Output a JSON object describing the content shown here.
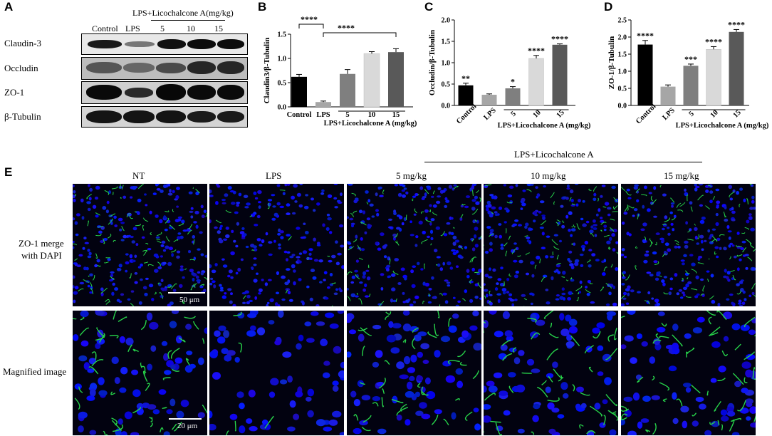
{
  "panels": {
    "A": "A",
    "B": "B",
    "C": "C",
    "D": "D",
    "E": "E"
  },
  "blot": {
    "group_header": "LPS+Licochalcone A(mg/kg)",
    "lanes": [
      "Control",
      "LPS",
      "5",
      "10",
      "15"
    ],
    "rows": [
      "Claudin-3",
      "Occludin",
      "ZO-1",
      "β-Tubulin"
    ]
  },
  "chart_data": [
    {
      "panel": "B",
      "type": "bar",
      "ylabel": "Claudin3/β-Tubulin",
      "xlabel": "LPS+Licochalcone A (mg/kg)",
      "categories": [
        "Control",
        "LPS",
        "5",
        "10",
        "15"
      ],
      "values": [
        0.62,
        0.1,
        0.68,
        1.1,
        1.13
      ],
      "errors": [
        0.05,
        0.02,
        0.09,
        0.04,
        0.07
      ],
      "annotations": [
        "",
        "",
        "",
        "",
        ""
      ],
      "brackets": [
        {
          "from": 0,
          "to": 1,
          "label": "****"
        },
        {
          "from": 1,
          "to": 4,
          "label": "****"
        }
      ],
      "colors": [
        "#000000",
        "#a6a6a6",
        "#7f7f7f",
        "#d9d9d9",
        "#595959"
      ],
      "ylim": [
        0,
        1.5
      ],
      "yticks": [],
      "ytick_labels": [
        "0.0",
        "0.5",
        "1.0",
        "1.5"
      ]
    },
    {
      "panel": "C",
      "type": "bar",
      "ylabel": "Occludin/β-Tubulin",
      "xlabel": "LPS+Licochalcone A (mg/kg)",
      "categories": [
        "Control",
        "LPS",
        "5",
        "10",
        "15"
      ],
      "values": [
        0.47,
        0.25,
        0.4,
        1.1,
        1.42
      ],
      "errors": [
        0.05,
        0.02,
        0.04,
        0.07,
        0.02
      ],
      "annotations": [
        "**",
        "",
        "*",
        "****",
        "****"
      ],
      "brackets": [],
      "colors": [
        "#000000",
        "#a6a6a6",
        "#7f7f7f",
        "#d9d9d9",
        "#595959"
      ],
      "ylim": [
        0,
        2.0
      ],
      "ytick_labels": [
        "0.0",
        "0.5",
        "1.0",
        "1.5",
        "2.0"
      ]
    },
    {
      "panel": "D",
      "type": "bar",
      "ylabel": "ZO-1/β-Tubulin",
      "xlabel": "LPS+Licochalcone A (mg/kg)",
      "categories": [
        "Control",
        "LPS",
        "5",
        "10",
        "15"
      ],
      "values": [
        1.78,
        0.55,
        1.16,
        1.64,
        2.15
      ],
      "errors": [
        0.12,
        0.05,
        0.05,
        0.08,
        0.07
      ],
      "annotations": [
        "****",
        "",
        "***",
        "****",
        "****"
      ],
      "brackets": [],
      "colors": [
        "#000000",
        "#a6a6a6",
        "#7f7f7f",
        "#d9d9d9",
        "#595959"
      ],
      "ylim": [
        0,
        2.5
      ],
      "ytick_labels": [
        "0.0",
        "0.5",
        "1.0",
        "1.5",
        "2.0",
        "2.5"
      ]
    }
  ],
  "micro": {
    "group_header": "LPS+Licochalcone A",
    "columns": [
      "NT",
      "LPS",
      "5 mg/kg",
      "10 mg/kg",
      "15 mg/kg"
    ],
    "row1_label_line1": "ZO-1 merge",
    "row1_label_line2": "with DAPI",
    "row2_label": "Magnified image",
    "scale1": "50 μm",
    "scale2": "20 μm"
  }
}
